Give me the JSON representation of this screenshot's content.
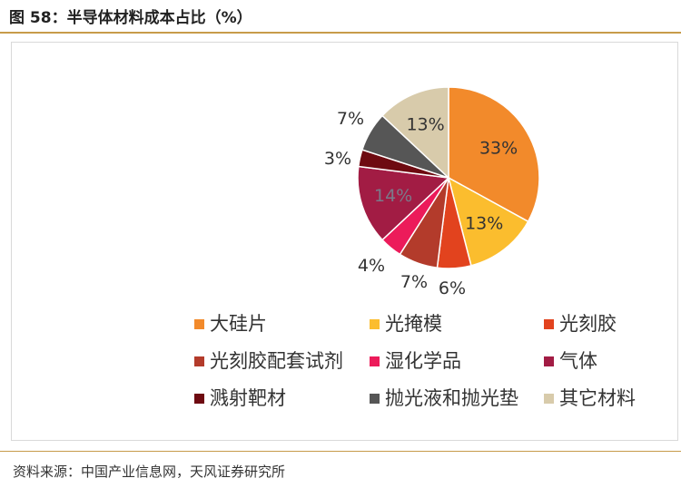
{
  "title": "图 58：半导体材料成本占比（%）",
  "source": "资料来源：中国产业信息网，天风证券研究所",
  "chart_data": {
    "type": "pie",
    "title": "",
    "unit": "%",
    "legend_position": "bottom",
    "categories": [
      "大硅片",
      "光掩模",
      "光刻胶",
      "光刻胶配套试剂",
      "湿化学品",
      "气体",
      "溅射靶材",
      "抛光液和抛光垫",
      "其它材料"
    ],
    "values": [
      33,
      13,
      6,
      7,
      4,
      14,
      3,
      7,
      13
    ],
    "data_labels": [
      "33%",
      "13%",
      "6%",
      "7%",
      "4%",
      "14%",
      "3%",
      "7%",
      "13%"
    ],
    "colors": [
      "#f28a2b",
      "#fbbd2e",
      "#e2431e",
      "#b33b2b",
      "#ec1b5a",
      "#a21c44",
      "#6e0a11",
      "#565656",
      "#d8cbab"
    ]
  }
}
